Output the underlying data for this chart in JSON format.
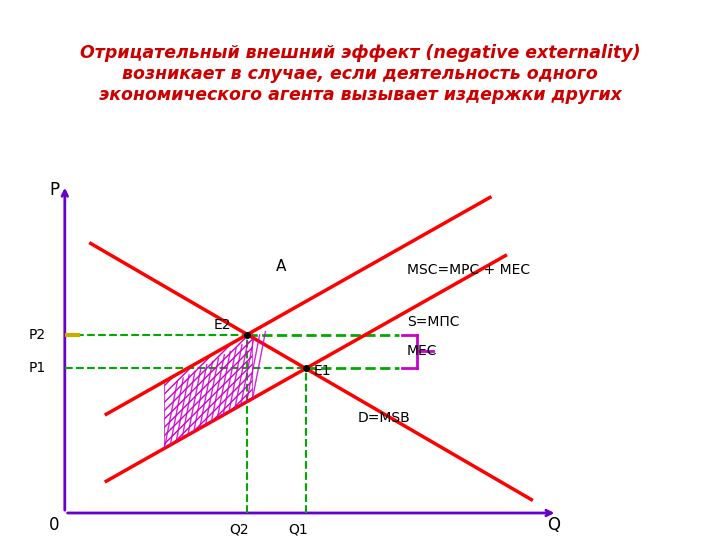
{
  "title_line1": "Отрицательный внешний эффект (negative externality)",
  "title_line2": "возникает в случае, если деятельность одного",
  "title_line3": "экономического агента вызывает издержки других",
  "title_color": "#cc0000",
  "title_bg_color": "#d8ddb5",
  "bg_color": "#ffffff",
  "axis_color": "#6600cc",
  "cyan_arrow_color": "#00aacc",
  "label_P": "P",
  "label_Q": "Q",
  "label_0": "0",
  "label_P1": "P1",
  "label_P2": "P2",
  "label_Q1": "Q1",
  "label_Q2": "Q2",
  "label_A": "A",
  "label_E1": "E1",
  "label_E2": "E2",
  "label_MSC": "MSC=МРС + МЕС",
  "label_S": "S=МПС",
  "label_MEC": "МЕС",
  "label_D": "D=MSB",
  "x_range": [
    0,
    10
  ],
  "y_range": [
    0,
    10
  ],
  "supply_color": "#ff0000",
  "demand_color": "#ff0000",
  "msc_color": "#ff0000",
  "hatch_color": "#cc00cc",
  "dashed_color": "#00aa00",
  "bracket_color": "#cc00cc",
  "yellow_color": "#ccaa00"
}
